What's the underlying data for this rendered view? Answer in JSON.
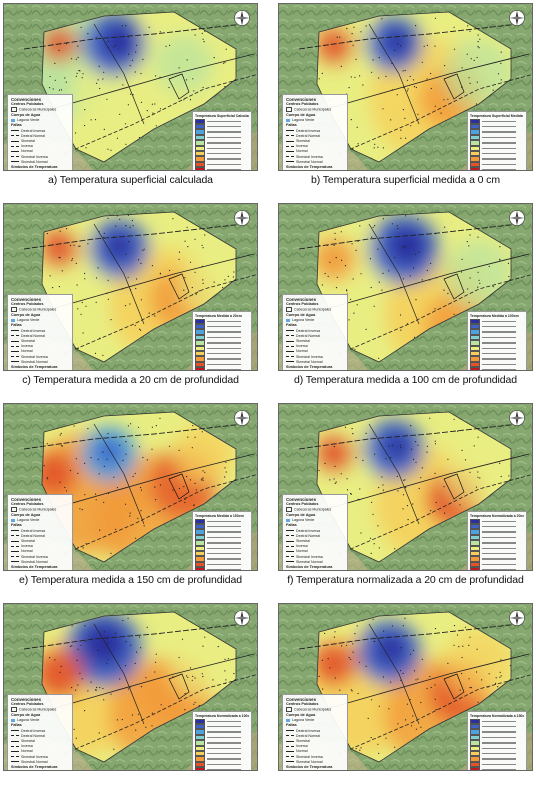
{
  "panels": [
    {
      "caption": "a) Temperatura superficial calculada",
      "legend_title": "Temperatura Superficial Calculada",
      "variant": "surface"
    },
    {
      "caption": "b) Temperatura superficial medida a 0 cm",
      "legend_title": "Temperatura Superficial Medida",
      "variant": "measured0"
    },
    {
      "caption": "c) Temperatura medida a 20 cm de profundidad",
      "legend_title": "Temperatura Medida a 20cm",
      "variant": "measured20"
    },
    {
      "caption": "d) Temperatura medida a 100 cm de profundidad",
      "legend_title": "Temperatura Medida a 100cm",
      "variant": "measured100"
    },
    {
      "caption": "e) Temperatura medida a 150 cm de profundidad",
      "legend_title": "Temperatura Medida a 150cm",
      "variant": "measured150"
    },
    {
      "caption": "f) Temperatura normalizada a 20 cm de profundidad",
      "legend_title": "Temperatura Normalizada a 20cm",
      "variant": "normalized20"
    },
    {
      "caption": "",
      "legend_title": "Temperatura Normalizada a 100cm",
      "variant": "normalized100"
    },
    {
      "caption": "",
      "legend_title": "Temperatura Normalizada a 150cm",
      "variant": "normalized150"
    }
  ],
  "legend_left": {
    "title": "Convenciones",
    "centros": "Centros Poblados",
    "cabeceras": "Cabeceras Municipales",
    "cuerpo": "Cuerpo de Agua",
    "laguna": "Laguna Verde",
    "fallas": "Fallas",
    "items": [
      "Dextral Inversa",
      "Dextral Normal",
      "Sinestral",
      "Inversa",
      "Normal",
      "Sinestral Inversa",
      "Sinestral Normal"
    ],
    "simbolos": "Simbolos de Temperatura",
    "estaciones": "Estaciones"
  },
  "palette": [
    "#2c2f9e",
    "#3d62c9",
    "#4fa2dc",
    "#7fd0cf",
    "#b8e3a1",
    "#e9ee82",
    "#f6cf5a",
    "#f29a3a",
    "#e2522b",
    "#c4161f"
  ]
}
